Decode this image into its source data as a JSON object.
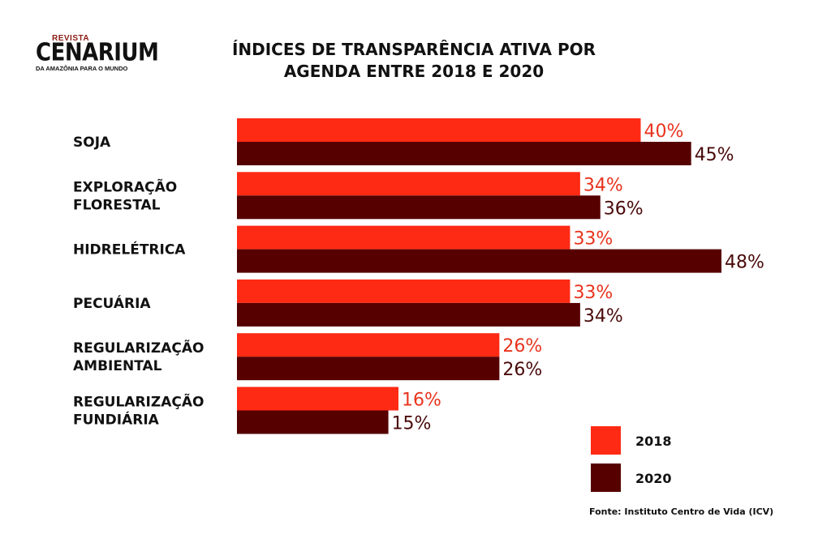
{
  "logo": {
    "revista": "REVISTA",
    "name": "CENARIUM",
    "tagline": "DA AMAZÔNIA PARA O MUNDO"
  },
  "title": {
    "line1": "ÍNDICES DE TRANSPARÊNCIA ATIVA POR",
    "line2": "AGENDA ENTRE 2018 E 2020"
  },
  "source": "Fonte: Instituto Centro de Vida (ICV)",
  "colors": {
    "series_2018": "#ff2a14",
    "series_2020": "#560000",
    "label_2018": "#e8341e",
    "label_2020": "#4a0a0a"
  },
  "chart_data": {
    "type": "bar",
    "orientation": "horizontal",
    "title": "ÍNDICES DE TRANSPARÊNCIA ATIVA POR AGENDA ENTRE 2018 E 2020",
    "categories": [
      [
        "SOJA"
      ],
      [
        "EXPLORAÇÃO",
        "FLORESTAL"
      ],
      [
        "HIDRELÉTRICA"
      ],
      [
        "PECUÁRIA"
      ],
      [
        "REGULARIZAÇÃO",
        "AMBIENTAL"
      ],
      [
        "REGULARIZAÇÃO",
        "FUNDIÁRIA"
      ]
    ],
    "series": [
      {
        "name": "2018",
        "values": [
          40,
          34,
          33,
          33,
          26,
          16
        ],
        "labels": [
          "40%",
          "34%",
          "33%",
          "33%",
          "26%",
          "16%"
        ]
      },
      {
        "name": "2020",
        "values": [
          45,
          36,
          48,
          34,
          26,
          15
        ],
        "labels": [
          "45%",
          "36%",
          "48%",
          "34%",
          "26%",
          "15%"
        ]
      }
    ],
    "xlim": [
      0,
      48
    ],
    "legend": "bottom-right",
    "grid": false,
    "xlabel": "",
    "ylabel": ""
  }
}
